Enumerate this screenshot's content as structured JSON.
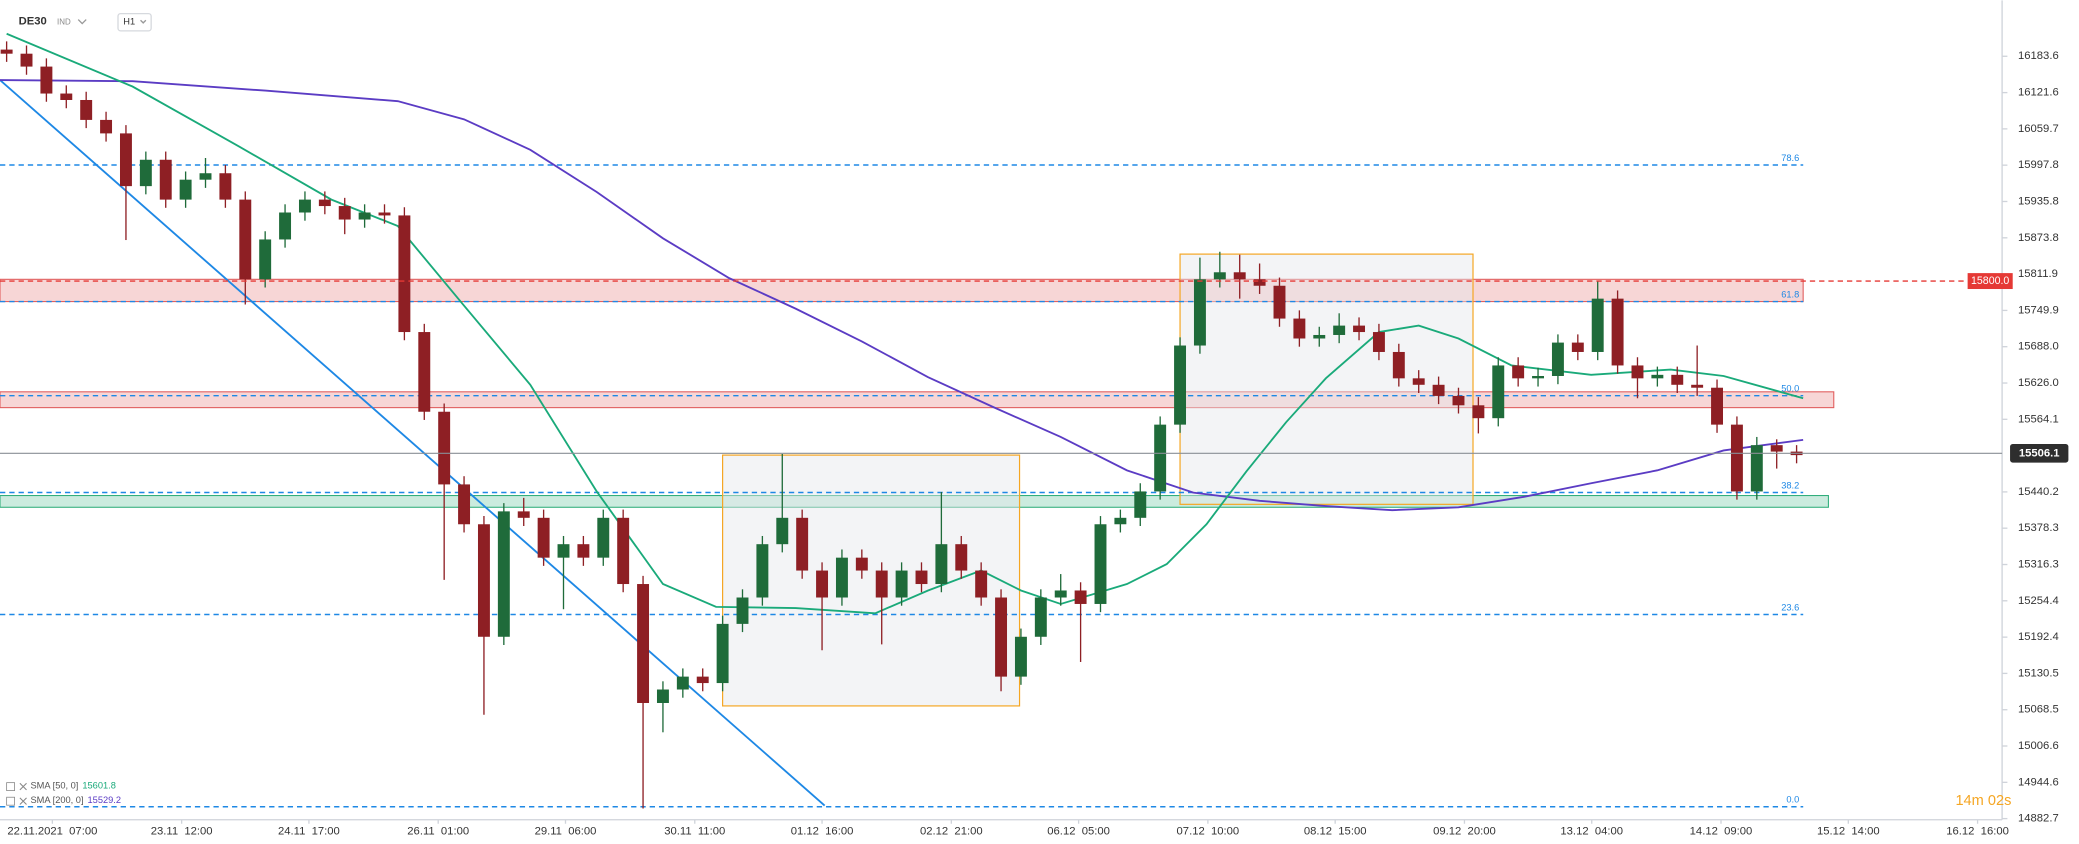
{
  "chart_data": {
    "type": "candlestick",
    "symbol": "DE30",
    "instrument_type": "IND",
    "interval": "H1",
    "xlim": [
      -0.333,
      100.333
    ],
    "ylim": [
      14840,
      16279
    ],
    "yticks": [
      16183.6,
      16121.6,
      16059.7,
      15997.8,
      15935.8,
      15873.8,
      15811.9,
      15749.9,
      {
        "value": 15688,
        "label": "15688.0"
      },
      {
        "value": 15626,
        "label": "15626.0"
      },
      15564.1,
      15440.2,
      15378.3,
      15316.3,
      15254.4,
      15192.4,
      15130.5,
      15068.5,
      15006.6,
      14944.6,
      14882.7
    ],
    "xticks": [
      {
        "value": 2.3,
        "label": "22.11.2021  07:00"
      },
      {
        "value": 8.8,
        "label": "23.11  12:00"
      },
      {
        "value": 15.2,
        "label": "24.11  17:00"
      },
      {
        "value": 21.7,
        "label": "26.11  01:00"
      },
      {
        "value": 28.1,
        "label": "29.11  06:00"
      },
      {
        "value": 34.6,
        "label": "30.11  11:00"
      },
      {
        "value": 41.0,
        "label": "01.12  16:00"
      },
      {
        "value": 47.5,
        "label": "02.12  21:00"
      },
      {
        "value": 53.9,
        "label": "06.12  05:00"
      },
      {
        "value": 60.4,
        "label": "07.12  10:00"
      },
      {
        "value": 66.8,
        "label": "08.12  15:00"
      },
      {
        "value": 73.3,
        "label": "09.12  20:00"
      },
      {
        "value": 79.7,
        "label": "13.12  04:00"
      },
      {
        "value": 86.2,
        "label": "14.12  09:00"
      },
      {
        "value": 92.6,
        "label": "15.12  14:00"
      },
      {
        "value": 99.1,
        "label": "16.12  16:00"
      }
    ],
    "up_color": "#1f6b3a",
    "down_color": "#8e1f24",
    "candles": {
      "open": [
        16195,
        16188,
        16166,
        16120,
        16109,
        16075,
        16052,
        15962,
        16007,
        15939,
        15973,
        15984,
        15939,
        15803,
        15871,
        15917,
        15939,
        15928,
        15905,
        15917,
        15912,
        15713,
        15577,
        15453,
        15385,
        15193,
        15407,
        15396,
        15328,
        15351,
        15328,
        15396,
        15283,
        15080,
        15103,
        15125,
        15114,
        15215,
        15260,
        15351,
        15396,
        15306,
        15260,
        15328,
        15306,
        15260,
        15306,
        15283,
        15351,
        15306,
        15260,
        15125,
        15193,
        15260,
        15272,
        15249,
        15385,
        15396,
        15441,
        15555,
        15690,
        15803,
        15815,
        15803,
        15792,
        15736,
        15702,
        15708,
        15724,
        15713,
        15679,
        15634,
        15623,
        15604,
        15588,
        15566,
        15656,
        15634,
        15638,
        15695,
        15679,
        15770,
        15656,
        15634,
        15640,
        15623,
        15618,
        15555,
        15441,
        15520,
        15509
      ],
      "high": [
        16209,
        16202,
        16180,
        16134,
        16123,
        16089,
        16066,
        16021,
        16021,
        15987,
        16010,
        15998,
        15953,
        15885,
        15931,
        15953,
        15953,
        15942,
        15931,
        15931,
        15926,
        15727,
        15591,
        15467,
        15399,
        15421,
        15430,
        15410,
        15365,
        15365,
        15410,
        15410,
        15297,
        15117,
        15139,
        15139,
        15229,
        15274,
        15365,
        15505,
        15410,
        15320,
        15342,
        15342,
        15320,
        15320,
        15320,
        15440,
        15365,
        15320,
        15274,
        15207,
        15274,
        15300,
        15286,
        15399,
        15410,
        15455,
        15569,
        15704,
        15840,
        15850,
        15845,
        15830,
        15806,
        15750,
        15722,
        15745,
        15738,
        15727,
        15693,
        15648,
        15637,
        15618,
        15602,
        15670,
        15670,
        15652,
        15709,
        15709,
        15800,
        15784,
        15670,
        15654,
        15654,
        15690,
        15632,
        15569,
        15534,
        15530,
        15520
      ],
      "low": [
        16174,
        16152,
        16106,
        16095,
        16061,
        16038,
        15870,
        15948,
        15925,
        15925,
        15959,
        15925,
        15760,
        15789,
        15857,
        15903,
        15914,
        15880,
        15891,
        15898,
        15699,
        15563,
        15290,
        15371,
        15060,
        15179,
        15382,
        15314,
        15240,
        15314,
        15314,
        15269,
        14900,
        15030,
        15089,
        15100,
        15100,
        15201,
        15246,
        15337,
        15292,
        15170,
        15246,
        15292,
        15180,
        15246,
        15269,
        15269,
        15292,
        15246,
        15100,
        15111,
        15179,
        15246,
        15150,
        15235,
        15371,
        15382,
        15427,
        15541,
        15676,
        15789,
        15770,
        15778,
        15722,
        15688,
        15688,
        15694,
        15699,
        15665,
        15620,
        15609,
        15590,
        15574,
        15540,
        15552,
        15620,
        15620,
        15624,
        15665,
        15665,
        15642,
        15600,
        15620,
        15609,
        15604,
        15541,
        15427,
        15427,
        15480,
        15489
      ],
      "close": [
        16188,
        16166,
        16120,
        16109,
        16075,
        16052,
        15962,
        16007,
        15939,
        15973,
        15984,
        15939,
        15803,
        15871,
        15917,
        15939,
        15928,
        15905,
        15917,
        15912,
        15713,
        15577,
        15453,
        15385,
        15193,
        15407,
        15396,
        15328,
        15351,
        15328,
        15396,
        15283,
        15080,
        15103,
        15125,
        15114,
        15215,
        15260,
        15351,
        15396,
        15306,
        15260,
        15328,
        15306,
        15260,
        15306,
        15283,
        15351,
        15306,
        15260,
        15125,
        15193,
        15260,
        15272,
        15249,
        15385,
        15396,
        15441,
        15555,
        15690,
        15803,
        15815,
        15803,
        15792,
        15736,
        15702,
        15708,
        15724,
        15713,
        15679,
        15634,
        15623,
        15604,
        15588,
        15566,
        15656,
        15634,
        15638,
        15695,
        15679,
        15770,
        15656,
        15634,
        15640,
        15623,
        15618,
        15555,
        15441,
        15520,
        15509,
        15503
      ]
    },
    "series": [
      {
        "name": "SMA [200, 0]",
        "last": 15529.2,
        "color": "#5b3cc4",
        "x": [
          -0.333,
          6.33,
          13,
          19.67,
          23,
          26.33,
          29.67,
          33,
          36.33,
          39.67,
          43,
          46.33,
          49.67,
          53,
          56.33,
          59.67,
          63,
          66.33,
          69.67,
          73,
          76.33,
          79.67,
          83,
          86.33,
          90.33
        ],
        "values": [
          16143,
          16141,
          16125,
          16107,
          16076,
          16024,
          15952,
          15873,
          15805,
          15753,
          15697,
          15636,
          15584,
          15534,
          15477,
          15439,
          15425,
          15416,
          15409,
          15414,
          15432,
          15455,
          15477,
          15511,
          15529
        ]
      },
      {
        "name": "SMA [50, 0]",
        "last": 15601.8,
        "color": "#1aaa7a",
        "x": [
          0,
          6.33,
          11.67,
          16.33,
          19.67,
          23,
          26.33,
          29.67,
          33,
          35.67,
          39.67,
          43.67,
          46.33,
          49,
          51,
          53,
          56.33,
          58.33,
          60.33,
          62.33,
          64.33,
          66.33,
          69,
          71,
          73,
          75.67,
          79.67,
          83.67,
          86.33,
          90.33
        ],
        "values": [
          16222,
          16132,
          16030,
          15939,
          15894,
          15758,
          15623,
          15441,
          15283,
          15244,
          15242,
          15233,
          15272,
          15306,
          15272,
          15249,
          15283,
          15317,
          15385,
          15475,
          15559,
          15634,
          15713,
          15724,
          15702,
          15656,
          15640,
          15649,
          15638,
          15600
        ]
      }
    ],
    "trendline": {
      "x": [
        -0.333,
        41.13
      ],
      "y": [
        16143,
        14905
      ],
      "color": "#1e88e5"
    },
    "fib_color": "#1e88e5",
    "fib_levels": [
      {
        "label": "78.6",
        "price": 15998
      },
      {
        "label": "61.8",
        "price": 15765
      },
      {
        "label": "50.0",
        "price": 15604.4
      },
      {
        "label": "38.2",
        "price": 15439.2
      },
      {
        "label": "23.6",
        "price": 15231
      },
      {
        "label": "0.0",
        "price": 14903
      }
    ],
    "zones": [
      {
        "x": [
          -0.333,
          90.33
        ],
        "y": [
          15765,
          15803
        ],
        "color": "#e05a5a"
      },
      {
        "x": [
          -0.333,
          91.87
        ],
        "y": [
          15584,
          15611
        ],
        "color": "#e05a5a"
      },
      {
        "x": [
          -0.333,
          91.6
        ],
        "y": [
          15414,
          15434
        ],
        "color": "#2fae7a"
      }
    ],
    "boxes": [
      {
        "x": [
          36,
          50.93
        ],
        "y": [
          15075,
          15503
        ],
        "color": "#f5a623"
      },
      {
        "x": [
          59,
          73.73
        ],
        "y": [
          15419,
          15846
        ],
        "color": "#f5a623"
      }
    ],
    "alert": {
      "value": 15800,
      "label": "15800.0",
      "color": "#e53935"
    },
    "last_price": {
      "value": 15506.1,
      "color": "#2e2e2e"
    },
    "timer": "14m 02s"
  }
}
